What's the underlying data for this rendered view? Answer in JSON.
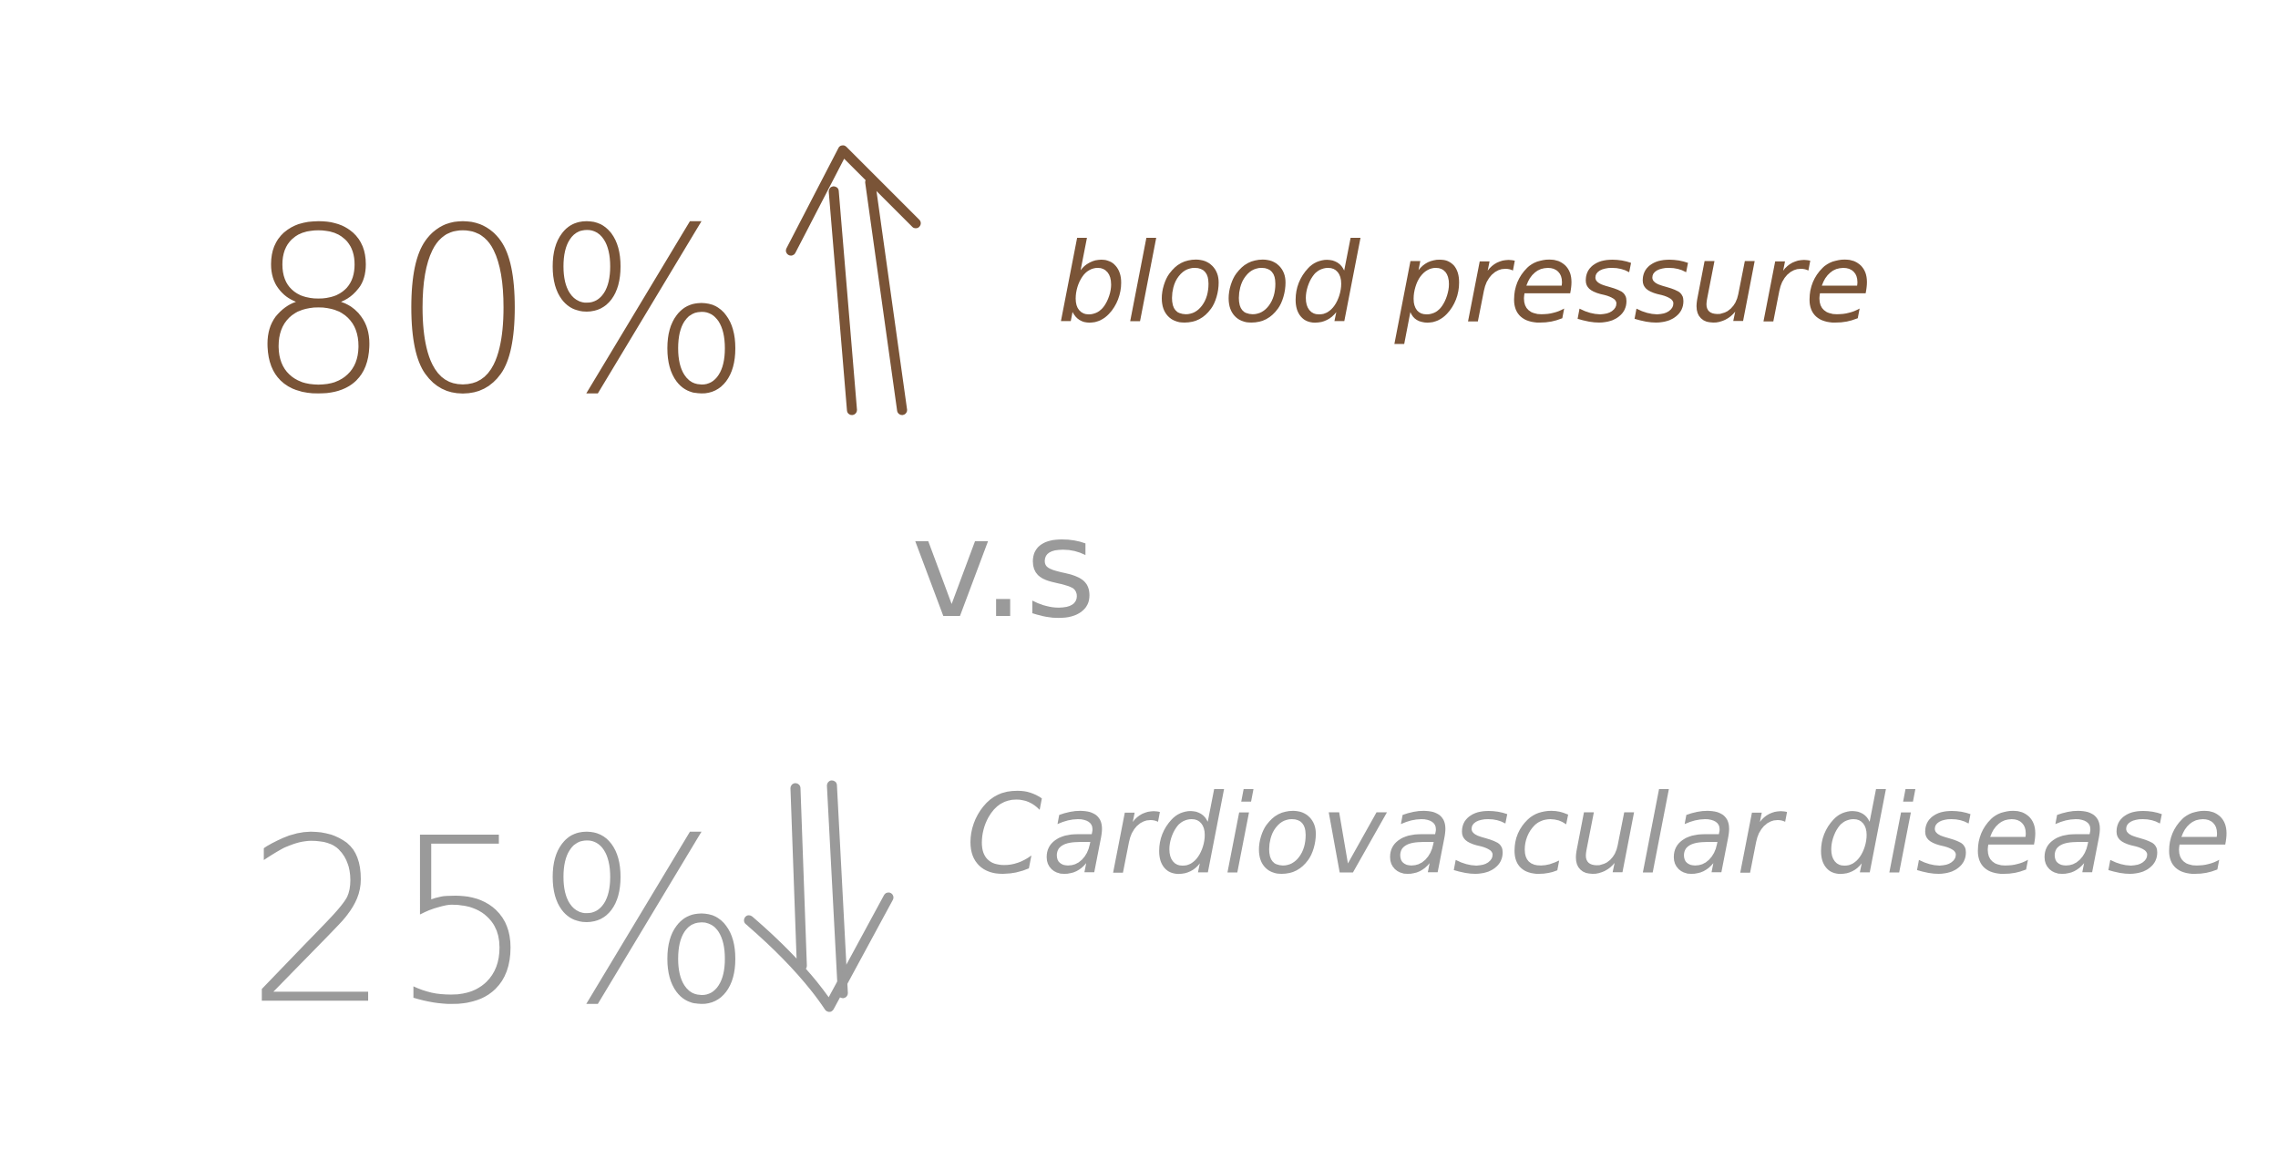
{
  "rows": [
    {
      "value": "80%",
      "label": "blood pressure"
    },
    {
      "value": "25%",
      "label": "Cardiovascular disease"
    }
  ],
  "separator": "v.s"
}
